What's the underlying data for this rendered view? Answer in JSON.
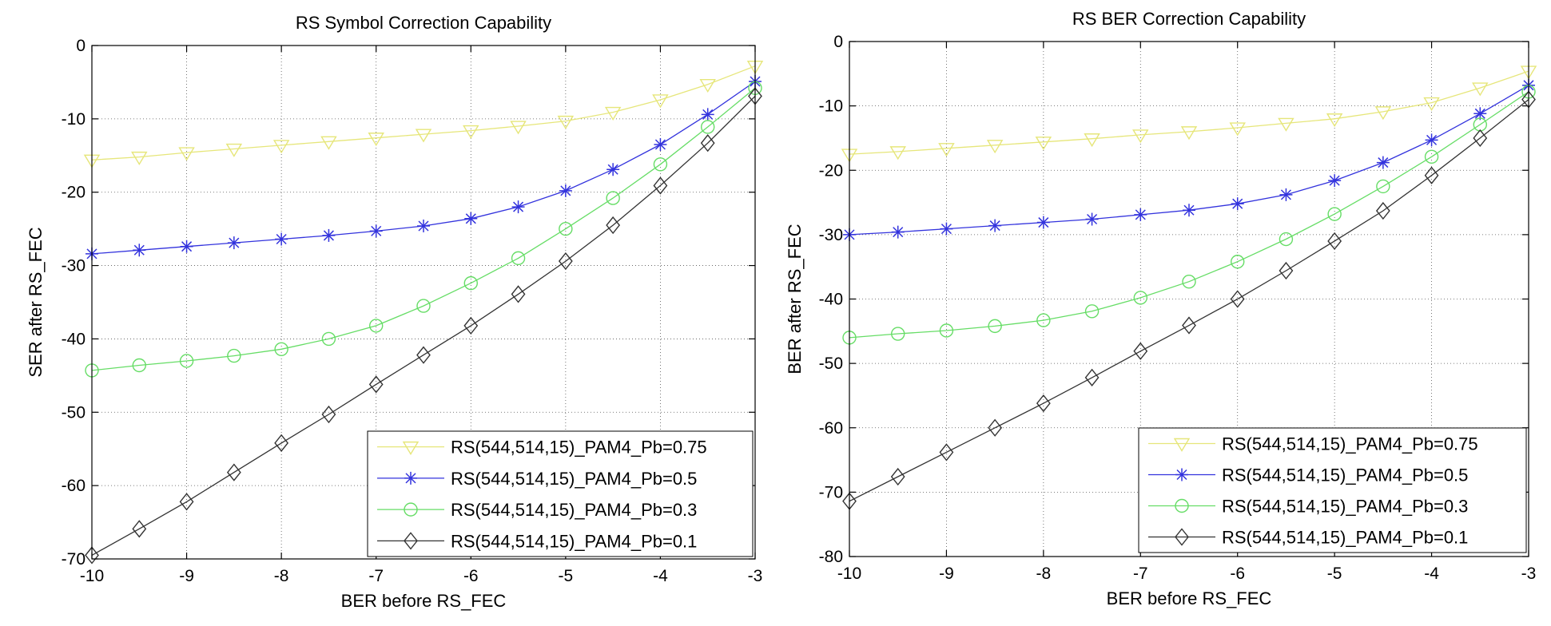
{
  "chart_data": [
    {
      "type": "line",
      "title": "RS Symbol Correction Capability",
      "xlabel": "BER before RS_FEC",
      "ylabel": "SER after RS_FEC",
      "xlim": [
        -10,
        -3
      ],
      "ylim": [
        -70,
        0
      ],
      "xticks": [
        -10,
        -9,
        -8,
        -7,
        -6,
        -5,
        -4,
        -3
      ],
      "yticks": [
        0,
        -10,
        -20,
        -30,
        -40,
        -50,
        -60,
        -70
      ],
      "grid": true,
      "legend_position": "bottom-right",
      "x": [
        -10,
        -9.5,
        -9,
        -8.5,
        -8,
        -7.5,
        -7,
        -6.5,
        -6,
        -5.5,
        -5,
        -4.5,
        -4,
        -3.5,
        -3
      ],
      "series": [
        {
          "name": "RS(544,514,15)_PAM4_Pb=0.75",
          "color": "#E6E67A",
          "marker": "triangle-down",
          "values": [
            -15.6,
            -15.2,
            -14.6,
            -14.1,
            -13.6,
            -13.1,
            -12.6,
            -12.1,
            -11.6,
            -11.0,
            -10.3,
            -9.1,
            -7.4,
            -5.3,
            -2.8
          ]
        },
        {
          "name": "RS(544,514,15)_PAM4_Pb=0.5",
          "color": "#3333DD",
          "marker": "star",
          "values": [
            -28.4,
            -27.9,
            -27.4,
            -26.9,
            -26.4,
            -25.9,
            -25.3,
            -24.6,
            -23.6,
            -22.0,
            -19.8,
            -16.9,
            -13.5,
            -9.4,
            -4.9
          ]
        },
        {
          "name": "RS(544,514,15)_PAM4_Pb=0.3",
          "color": "#66DD66",
          "marker": "circle",
          "values": [
            -44.3,
            -43.6,
            -43.0,
            -42.3,
            -41.4,
            -40.0,
            -38.2,
            -35.5,
            -32.4,
            -29.0,
            -25.0,
            -20.8,
            -16.2,
            -11.1,
            -5.8
          ]
        },
        {
          "name": "RS(544,514,15)_PAM4_Pb=0.1",
          "color": "#333333",
          "marker": "diamond",
          "values": [
            -69.5,
            -65.9,
            -62.2,
            -58.2,
            -54.2,
            -50.3,
            -46.2,
            -42.2,
            -38.2,
            -33.9,
            -29.4,
            -24.5,
            -19.1,
            -13.3,
            -6.9
          ]
        }
      ]
    },
    {
      "type": "line",
      "title": "RS BER Correction Capability",
      "xlabel": "BER before RS_FEC",
      "ylabel": "BER after RS_FEC",
      "xlim": [
        -10,
        -3
      ],
      "ylim": [
        -80,
        0
      ],
      "xticks": [
        -10,
        -9,
        -8,
        -7,
        -6,
        -5,
        -4,
        -3
      ],
      "yticks": [
        0,
        -10,
        -20,
        -30,
        -40,
        -50,
        -60,
        -70,
        -80
      ],
      "grid": true,
      "legend_position": "bottom-right",
      "x": [
        -10,
        -9.5,
        -9,
        -8.5,
        -8,
        -7.5,
        -7,
        -6.5,
        -6,
        -5.5,
        -5,
        -4.5,
        -4,
        -3.5,
        -3
      ],
      "series": [
        {
          "name": "RS(544,514,15)_PAM4_Pb=0.75",
          "color": "#E6E67A",
          "marker": "triangle-down",
          "values": [
            -17.5,
            -17.1,
            -16.6,
            -16.1,
            -15.6,
            -15.1,
            -14.5,
            -14.0,
            -13.4,
            -12.7,
            -12.0,
            -10.9,
            -9.5,
            -7.2,
            -4.6
          ]
        },
        {
          "name": "RS(544,514,15)_PAM4_Pb=0.5",
          "color": "#3333DD",
          "marker": "star",
          "values": [
            -30.0,
            -29.6,
            -29.1,
            -28.6,
            -28.1,
            -27.6,
            -26.9,
            -26.2,
            -25.2,
            -23.8,
            -21.6,
            -18.8,
            -15.3,
            -11.2,
            -6.8
          ]
        },
        {
          "name": "RS(544,514,15)_PAM4_Pb=0.3",
          "color": "#66DD66",
          "marker": "circle",
          "values": [
            -46.0,
            -45.4,
            -44.9,
            -44.2,
            -43.3,
            -41.9,
            -39.8,
            -37.3,
            -34.2,
            -30.7,
            -26.8,
            -22.5,
            -17.9,
            -12.9,
            -7.8
          ]
        },
        {
          "name": "RS(544,514,15)_PAM4_Pb=0.1",
          "color": "#333333",
          "marker": "diamond",
          "values": [
            -71.4,
            -67.6,
            -63.8,
            -60.0,
            -56.2,
            -52.2,
            -48.1,
            -44.1,
            -40.0,
            -35.6,
            -31.0,
            -26.3,
            -20.8,
            -15.0,
            -9.0
          ]
        }
      ]
    }
  ]
}
